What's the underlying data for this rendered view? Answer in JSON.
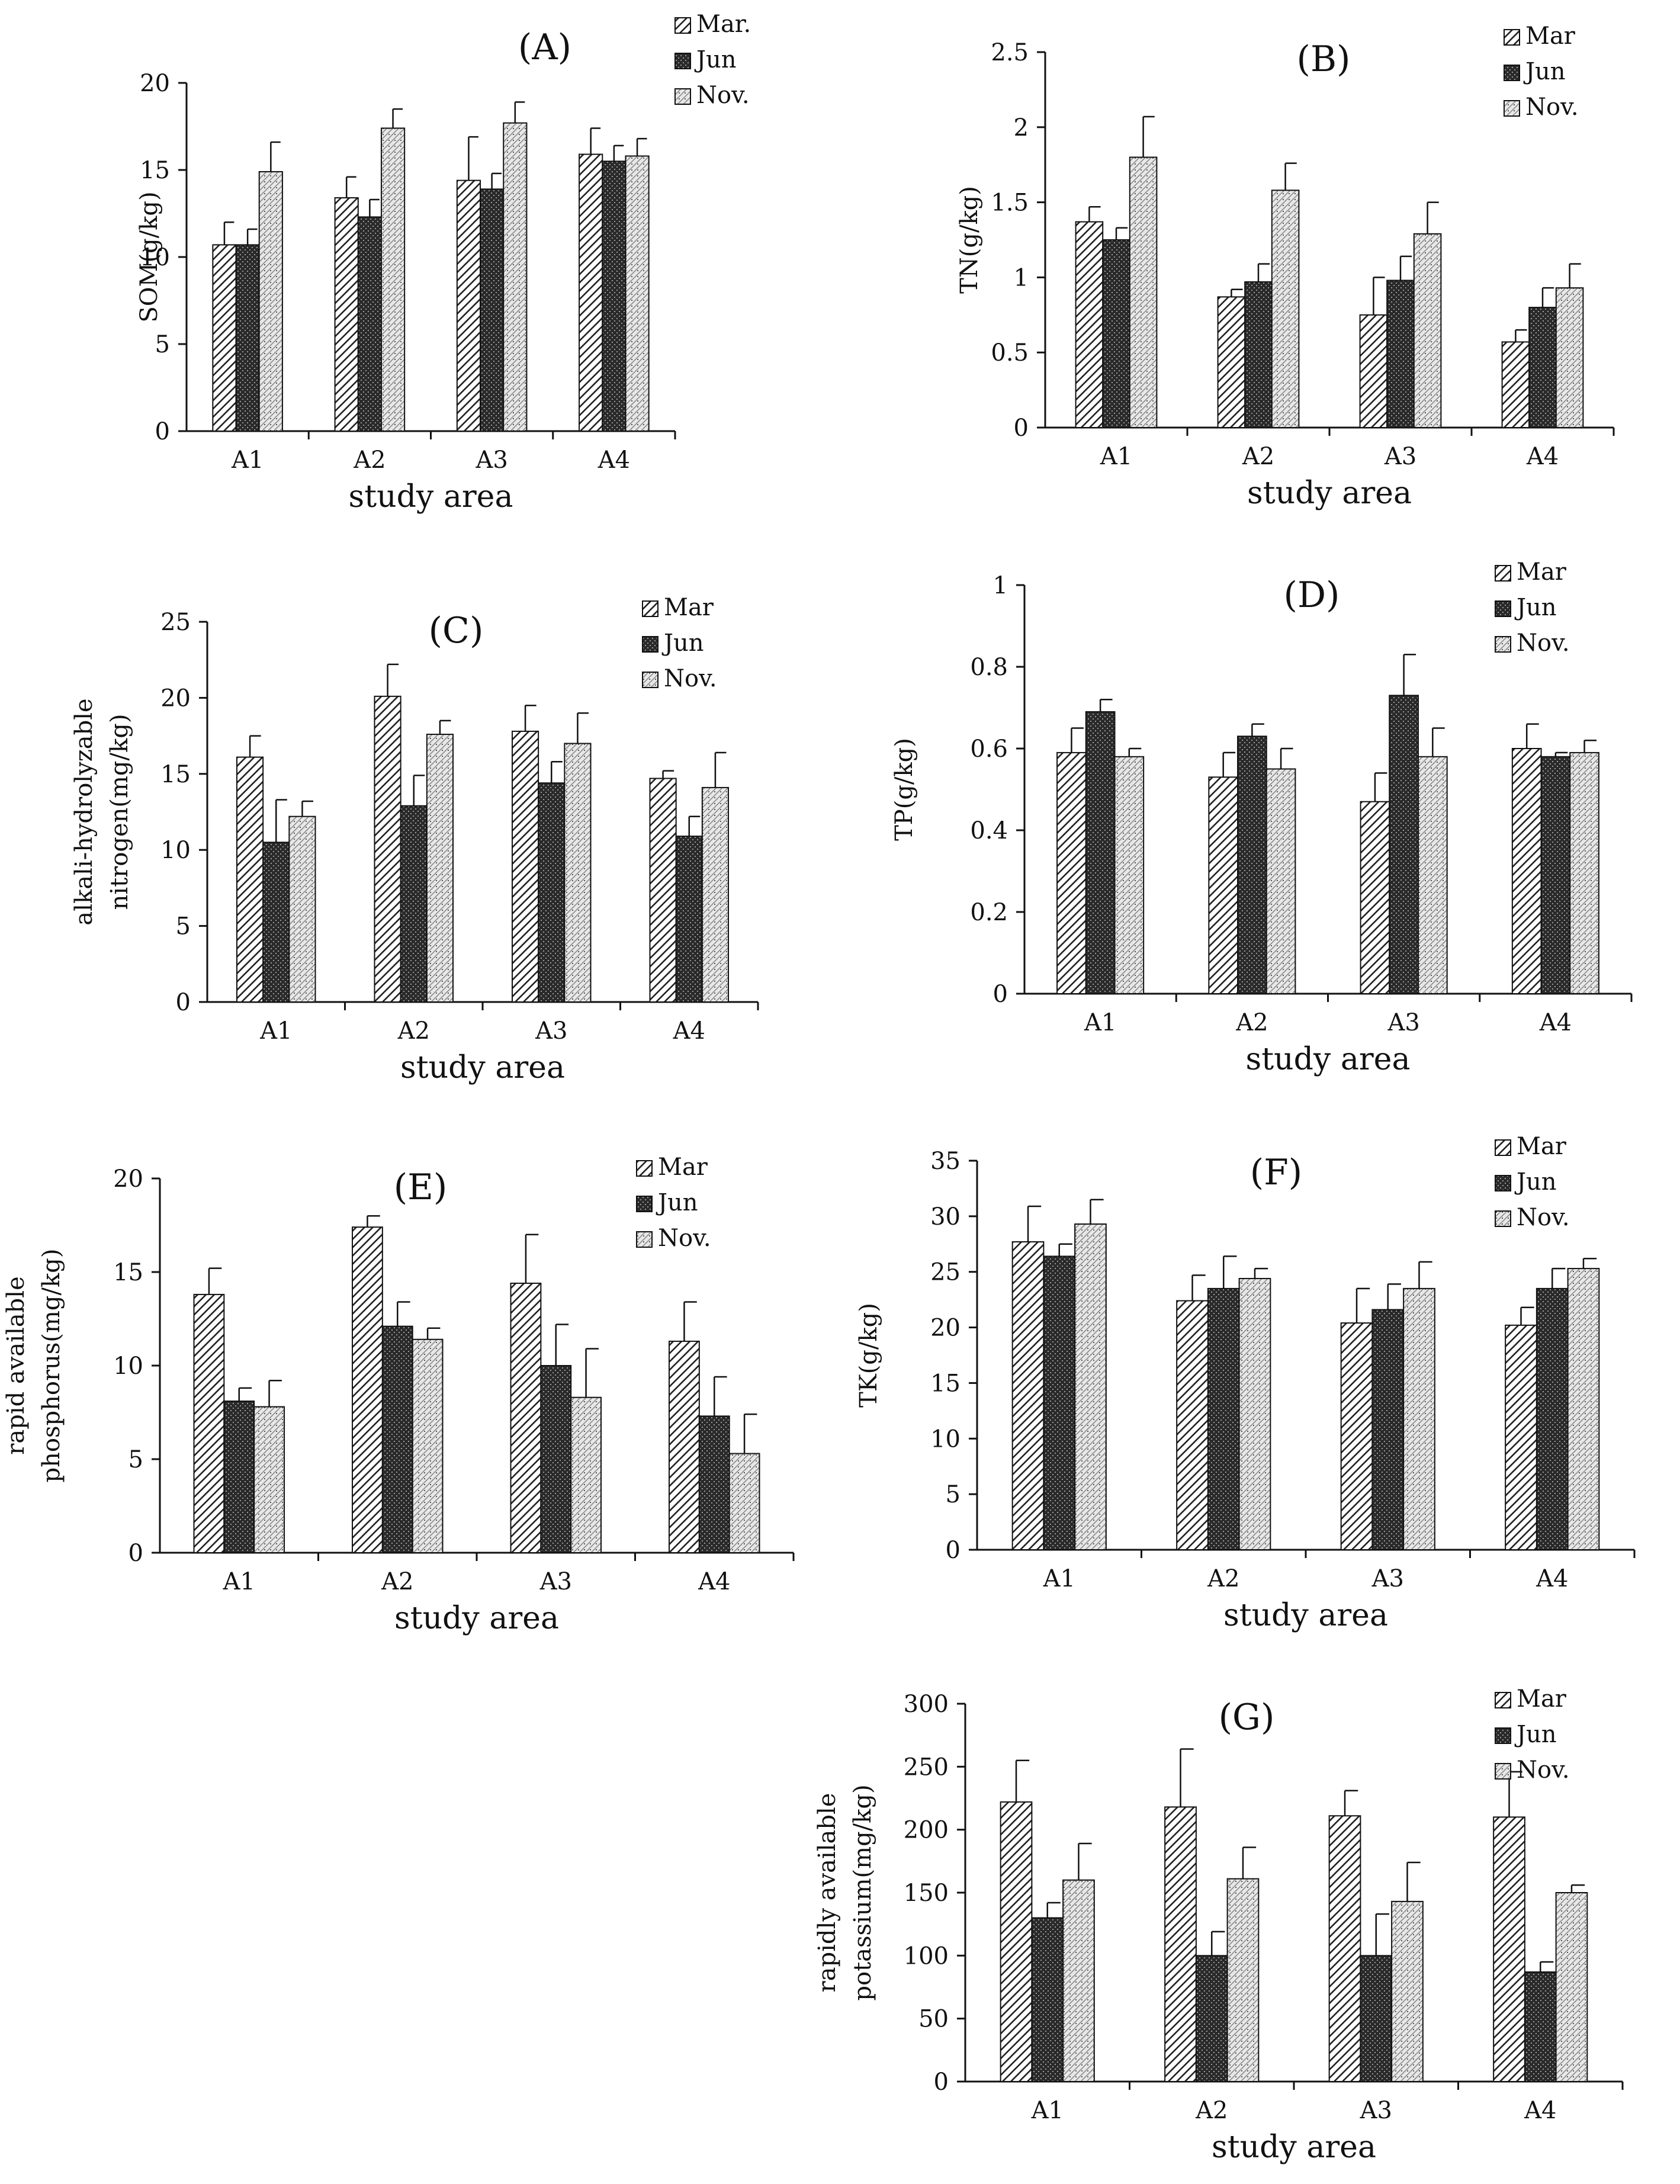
{
  "figure": "Soil nutrient comparison across study areas and seasons",
  "colors": {
    "axis": "#111111",
    "bar_fill": "#ffffff",
    "stroke": "#111111"
  },
  "chart_data": [
    {
      "id": "A",
      "type": "bar",
      "title": "(A)",
      "xlabel": "study area",
      "ylabel": [
        "SOM(g/kg)"
      ],
      "categories": [
        "A1",
        "A2",
        "A3",
        "A4"
      ],
      "ylim": [
        0,
        20
      ],
      "yticks": [
        "0",
        "5",
        "10",
        "15",
        "20"
      ],
      "legend": [
        "Mar.",
        "Jun",
        "Nov."
      ],
      "series": [
        {
          "name": "Mar.",
          "values": [
            10.7,
            13.4,
            14.4,
            15.9
          ],
          "errors": [
            1.3,
            1.2,
            2.5,
            1.5
          ]
        },
        {
          "name": "Jun",
          "values": [
            10.7,
            12.3,
            13.9,
            15.5
          ],
          "errors": [
            0.9,
            1.0,
            0.9,
            0.9
          ]
        },
        {
          "name": "Nov.",
          "values": [
            14.9,
            17.4,
            17.7,
            15.8
          ],
          "errors": [
            1.7,
            1.1,
            1.2,
            1.0
          ]
        }
      ]
    },
    {
      "id": "B",
      "type": "bar",
      "title": "(B)",
      "xlabel": "study area",
      "ylabel": [
        "TN(g/kg)"
      ],
      "categories": [
        "A1",
        "A2",
        "A3",
        "A4"
      ],
      "ylim": [
        0,
        2.5
      ],
      "yticks": [
        "0",
        "0.5",
        "1",
        "1.5",
        "2",
        "2.5"
      ],
      "legend": [
        "Mar",
        "Jun",
        "Nov."
      ],
      "series": [
        {
          "name": "Mar",
          "values": [
            1.37,
            0.87,
            0.75,
            0.57
          ],
          "errors": [
            0.1,
            0.05,
            0.25,
            0.08
          ]
        },
        {
          "name": "Jun",
          "values": [
            1.25,
            0.97,
            0.98,
            0.8
          ],
          "errors": [
            0.08,
            0.12,
            0.16,
            0.13
          ]
        },
        {
          "name": "Nov.",
          "values": [
            1.8,
            1.58,
            1.29,
            0.93
          ],
          "errors": [
            0.27,
            0.18,
            0.21,
            0.16
          ]
        }
      ]
    },
    {
      "id": "C",
      "type": "bar",
      "title": "(C)",
      "xlabel": "study area",
      "ylabel": [
        "alkali-hydrolyzable",
        "nitrogen(mg/kg)"
      ],
      "categories": [
        "A1",
        "A2",
        "A3",
        "A4"
      ],
      "ylim": [
        0,
        25
      ],
      "yticks": [
        "0",
        "5",
        "10",
        "15",
        "20",
        "25"
      ],
      "legend": [
        "Mar",
        "Jun",
        "Nov."
      ],
      "series": [
        {
          "name": "Mar",
          "values": [
            16.1,
            20.1,
            17.8,
            14.7
          ],
          "errors": [
            1.4,
            2.1,
            1.7,
            0.5
          ]
        },
        {
          "name": "Jun",
          "values": [
            10.5,
            12.9,
            14.4,
            10.9
          ],
          "errors": [
            2.8,
            2.0,
            1.4,
            1.3
          ]
        },
        {
          "name": "Nov.",
          "values": [
            12.2,
            17.6,
            17.0,
            14.1
          ],
          "errors": [
            1.0,
            0.9,
            2.0,
            2.3
          ]
        }
      ]
    },
    {
      "id": "D",
      "type": "bar",
      "title": "(D)",
      "xlabel": "study area",
      "ylabel": [
        "TP(g/kg)"
      ],
      "categories": [
        "A1",
        "A2",
        "A3",
        "A4"
      ],
      "ylim": [
        0,
        1
      ],
      "yticks": [
        "0",
        "0.2",
        "0.4",
        "0.6",
        "0.8",
        "1"
      ],
      "legend": [
        "Mar",
        "Jun",
        "Nov."
      ],
      "series": [
        {
          "name": "Mar",
          "values": [
            0.59,
            0.53,
            0.47,
            0.6
          ],
          "errors": [
            0.06,
            0.06,
            0.07,
            0.06
          ]
        },
        {
          "name": "Jun",
          "values": [
            0.69,
            0.63,
            0.73,
            0.58
          ],
          "errors": [
            0.03,
            0.03,
            0.1,
            0.01
          ]
        },
        {
          "name": "Nov.",
          "values": [
            0.58,
            0.55,
            0.58,
            0.59
          ],
          "errors": [
            0.02,
            0.05,
            0.07,
            0.03
          ]
        }
      ]
    },
    {
      "id": "E",
      "type": "bar",
      "title": "(E)",
      "xlabel": "study area",
      "ylabel": [
        "rapid available",
        "phosphorus(mg/kg)"
      ],
      "categories": [
        "A1",
        "A2",
        "A3",
        "A4"
      ],
      "ylim": [
        0,
        20
      ],
      "yticks": [
        "0",
        "5",
        "10",
        "15",
        "20"
      ],
      "legend": [
        "Mar",
        "Jun",
        "Nov."
      ],
      "series": [
        {
          "name": "Mar",
          "values": [
            13.8,
            17.4,
            14.4,
            11.3
          ],
          "errors": [
            1.4,
            0.6,
            2.6,
            2.1
          ]
        },
        {
          "name": "Jun",
          "values": [
            8.1,
            12.1,
            10.0,
            7.3
          ],
          "errors": [
            0.7,
            1.3,
            2.2,
            2.1
          ]
        },
        {
          "name": "Nov.",
          "values": [
            7.8,
            11.4,
            8.3,
            5.3
          ],
          "errors": [
            1.4,
            0.6,
            2.6,
            2.1
          ]
        }
      ]
    },
    {
      "id": "F",
      "type": "bar",
      "title": "(F)",
      "xlabel": "study area",
      "ylabel": [
        "TK(g/kg)"
      ],
      "categories": [
        "A1",
        "A2",
        "A3",
        "A4"
      ],
      "ylim": [
        0,
        35
      ],
      "yticks": [
        "0",
        "5",
        "10",
        "15",
        "20",
        "25",
        "30",
        "35"
      ],
      "legend": [
        "Mar",
        "Jun",
        "Nov."
      ],
      "series": [
        {
          "name": "Mar",
          "values": [
            27.7,
            22.4,
            20.4,
            20.2
          ],
          "errors": [
            3.2,
            2.3,
            3.1,
            1.6
          ]
        },
        {
          "name": "Jun",
          "values": [
            26.4,
            23.5,
            21.6,
            23.5
          ],
          "errors": [
            1.1,
            2.9,
            2.3,
            1.8
          ]
        },
        {
          "name": "Nov.",
          "values": [
            29.3,
            24.4,
            23.5,
            25.3
          ],
          "errors": [
            2.2,
            0.9,
            2.4,
            0.9
          ]
        }
      ]
    },
    {
      "id": "G",
      "type": "bar",
      "title": "(G)",
      "xlabel": "study area",
      "ylabel": [
        "rapidly available",
        "potassium(mg/kg)"
      ],
      "categories": [
        "A1",
        "A2",
        "A3",
        "A4"
      ],
      "ylim": [
        0,
        300
      ],
      "yticks": [
        "0",
        "50",
        "100",
        "150",
        "200",
        "250",
        "300"
      ],
      "legend": [
        "Mar",
        "Jun",
        "Nov."
      ],
      "series": [
        {
          "name": "Mar",
          "values": [
            222,
            218,
            211,
            210
          ],
          "errors": [
            33,
            46,
            20,
            36
          ]
        },
        {
          "name": "Jun",
          "values": [
            130,
            100,
            100,
            87
          ],
          "errors": [
            12,
            19,
            33,
            8
          ]
        },
        {
          "name": "Nov.",
          "values": [
            160,
            161,
            143,
            150
          ],
          "errors": [
            29,
            25,
            31,
            6
          ]
        }
      ]
    }
  ]
}
